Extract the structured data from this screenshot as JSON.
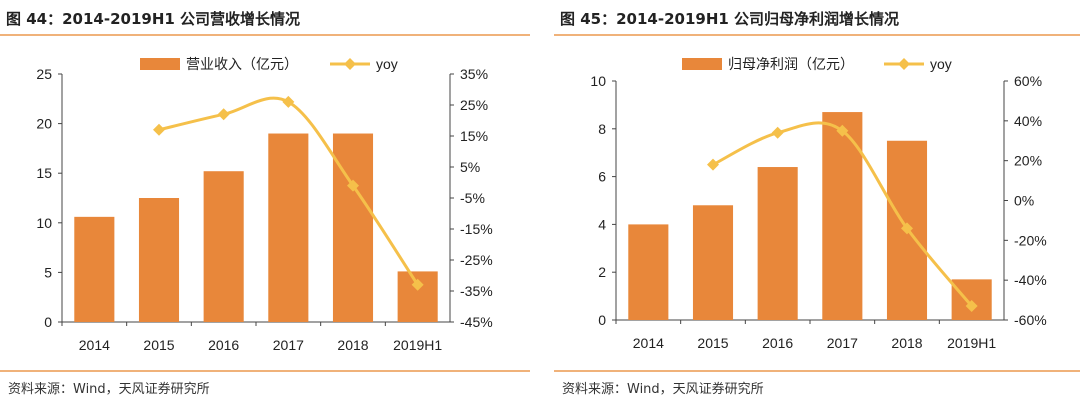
{
  "panels": [
    {
      "title": "图 44：2014-2019H1 公司营收增长情况",
      "source": "资料来源：Wind，天风证券研究所"
    },
    {
      "title": "图 45：2014-2019H1 公司归母净利润增长情况",
      "source": "资料来源：Wind，天风证券研究所"
    }
  ],
  "colors": {
    "bar": "#E8873A",
    "line": "#F5C04A",
    "rule": "#F0B27A"
  },
  "chart_data": [
    {
      "type": "bar",
      "categories": [
        "2014",
        "2015",
        "2016",
        "2017",
        "2018",
        "2019H1"
      ],
      "series": [
        {
          "name": "营业收入（亿元）",
          "type": "bar",
          "axis": "left",
          "values": [
            10.6,
            12.5,
            15.2,
            19.0,
            19.0,
            5.1
          ]
        },
        {
          "name": "yoy",
          "type": "line",
          "axis": "right",
          "values": [
            null,
            17,
            22,
            26,
            -1,
            -33
          ]
        }
      ],
      "left_axis": {
        "ylim": [
          0,
          25
        ],
        "ticks": [
          0,
          5,
          10,
          15,
          20,
          25
        ],
        "tick_labels": [
          "0",
          "5",
          "10",
          "15",
          "20",
          "25"
        ]
      },
      "right_axis": {
        "ylim": [
          -45,
          35
        ],
        "ticks": [
          -45,
          -35,
          -25,
          -15,
          -5,
          5,
          15,
          25,
          35
        ],
        "tick_labels": [
          "-45%",
          "-35%",
          "-25%",
          "-15%",
          "-5%",
          "5%",
          "15%",
          "25%",
          "35%"
        ]
      },
      "legend_position": "top",
      "grid": false
    },
    {
      "type": "bar",
      "categories": [
        "2014",
        "2015",
        "2016",
        "2017",
        "2018",
        "2019H1"
      ],
      "series": [
        {
          "name": "归母净利润（亿元）",
          "type": "bar",
          "axis": "left",
          "values": [
            4.0,
            4.8,
            6.4,
            8.7,
            7.5,
            1.7
          ]
        },
        {
          "name": "yoy",
          "type": "line",
          "axis": "right",
          "values": [
            null,
            18,
            34,
            35,
            -14,
            -53
          ]
        }
      ],
      "left_axis": {
        "ylim": [
          0,
          10
        ],
        "ticks": [
          0,
          2,
          4,
          6,
          8,
          10
        ],
        "tick_labels": [
          "0",
          "2",
          "4",
          "6",
          "8",
          "10"
        ]
      },
      "right_axis": {
        "ylim": [
          -60,
          60
        ],
        "ticks": [
          -60,
          -40,
          -20,
          0,
          20,
          40,
          60
        ],
        "tick_labels": [
          "-60%",
          "-40%",
          "-20%",
          "0%",
          "20%",
          "40%",
          "60%"
        ]
      },
      "legend_position": "top",
      "grid": false
    }
  ]
}
